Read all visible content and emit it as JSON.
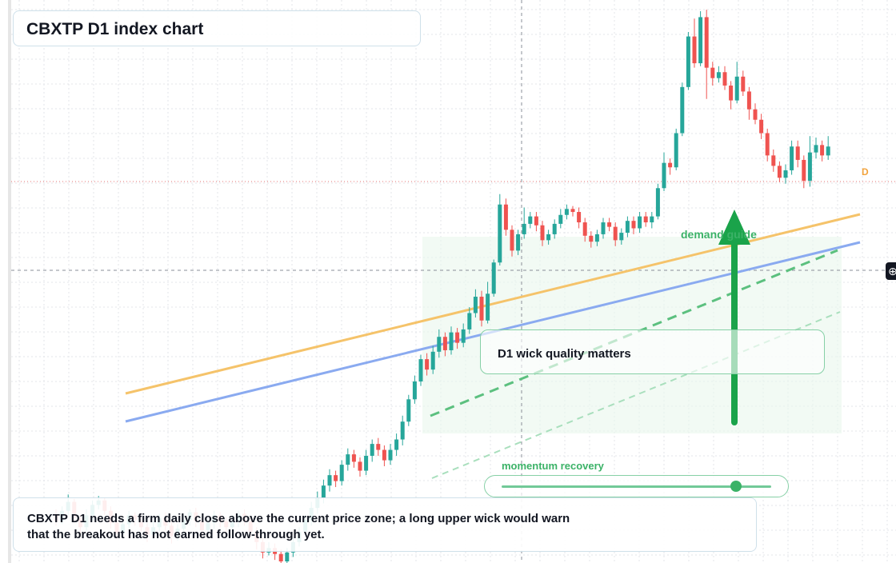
{
  "title": "CBXTP D1 index chart",
  "callout": "D1 wick quality matters",
  "note": "CBXTP D1 needs a firm daily close above the current price zone; a long upper wick would warn that the breakout has not earned follow-through yet.",
  "zone_label": "demand guide",
  "momentum": {
    "label": "momentum recovery",
    "level": 0.87
  },
  "series_badge": "D",
  "icons": {
    "crosshair": "crosshair-icon",
    "arrow": "up-arrow-icon"
  },
  "colors": {
    "up": "#26a69a",
    "down": "#ef5350",
    "trend_orange": "#f5c36a",
    "trend_blue": "#8aaaf0",
    "arrow": "#1aa34a",
    "zone": "#e9f7ec",
    "dashed_green": "#5cc07f",
    "price_line": "#e57373"
  },
  "chart_data": {
    "type": "candlestick",
    "title": "CBXTP D1 index chart",
    "timeframe": "D1",
    "ohlc": [
      [
        612,
        607,
        615,
        604
      ],
      [
        607,
        614,
        617,
        605
      ],
      [
        614,
        620,
        625,
        611
      ],
      [
        620,
        609,
        622,
        606
      ],
      [
        609,
        603,
        611,
        598
      ],
      [
        603,
        611,
        615,
        600
      ],
      [
        611,
        618,
        621,
        607
      ],
      [
        618,
        621,
        624,
        615
      ],
      [
        621,
        614,
        623,
        611
      ],
      [
        614,
        606,
        617,
        602
      ],
      [
        606,
        599,
        609,
        595
      ],
      [
        599,
        605,
        608,
        596
      ],
      [
        605,
        611,
        614,
        602
      ],
      [
        611,
        608,
        613,
        604
      ],
      [
        608,
        603,
        611,
        600
      ],
      [
        603,
        598,
        606,
        593
      ],
      [
        598,
        603,
        607,
        595
      ],
      [
        603,
        609,
        612,
        600
      ],
      [
        609,
        604,
        613,
        601
      ],
      [
        604,
        597,
        607,
        592
      ],
      [
        597,
        602,
        605,
        594
      ],
      [
        602,
        608,
        611,
        598
      ],
      [
        608,
        613,
        615,
        604
      ],
      [
        613,
        607,
        616,
        603
      ],
      [
        607,
        601,
        610,
        597
      ],
      [
        601,
        606,
        609,
        598
      ],
      [
        606,
        611,
        614,
        602
      ],
      [
        611,
        607,
        613,
        603
      ],
      [
        607,
        603,
        610,
        599
      ],
      [
        603,
        607,
        611,
        600
      ],
      [
        607,
        612,
        614,
        603
      ],
      [
        612,
        607,
        615,
        604
      ],
      [
        607,
        600,
        610,
        596
      ],
      [
        600,
        593,
        603,
        588
      ],
      [
        593,
        586,
        596,
        582
      ],
      [
        586,
        589,
        593,
        584
      ],
      [
        589,
        585,
        592,
        581
      ],
      [
        585,
        580,
        588,
        576
      ],
      [
        580,
        586,
        589,
        577
      ],
      [
        586,
        593,
        596,
        583
      ],
      [
        593,
        600,
        603,
        590
      ],
      [
        600,
        608,
        611,
        597
      ],
      [
        608,
        616,
        620,
        604
      ],
      [
        616,
        623,
        627,
        612
      ],
      [
        623,
        631,
        635,
        619
      ],
      [
        631,
        638,
        642,
        627
      ],
      [
        638,
        634,
        641,
        630
      ],
      [
        634,
        645,
        648,
        631
      ],
      [
        645,
        652,
        656,
        641
      ],
      [
        652,
        647,
        655,
        643
      ],
      [
        647,
        641,
        650,
        637
      ],
      [
        641,
        651,
        655,
        638
      ],
      [
        651,
        659,
        662,
        647
      ],
      [
        659,
        655,
        663,
        651
      ],
      [
        655,
        648,
        658,
        644
      ],
      [
        648,
        655,
        659,
        645
      ],
      [
        655,
        662,
        666,
        651
      ],
      [
        662,
        674,
        678,
        658
      ],
      [
        674,
        689,
        692,
        671
      ],
      [
        689,
        701,
        705,
        686
      ],
      [
        701,
        716,
        719,
        698
      ],
      [
        716,
        709,
        720,
        705
      ],
      [
        709,
        721,
        725,
        706
      ],
      [
        721,
        731,
        736,
        717
      ],
      [
        731,
        722,
        734,
        718
      ],
      [
        722,
        734,
        738,
        719
      ],
      [
        734,
        727,
        737,
        723
      ],
      [
        727,
        736,
        740,
        724
      ],
      [
        736,
        747,
        751,
        733
      ],
      [
        747,
        758,
        763,
        744
      ],
      [
        758,
        742,
        762,
        738
      ],
      [
        742,
        760,
        768,
        740
      ],
      [
        760,
        781,
        783,
        758
      ],
      [
        781,
        820,
        827,
        779
      ],
      [
        820,
        803,
        824,
        799
      ],
      [
        803,
        789,
        806,
        785
      ],
      [
        789,
        800,
        803,
        786
      ],
      [
        800,
        807,
        818,
        797
      ],
      [
        807,
        812,
        815,
        804
      ],
      [
        812,
        806,
        815,
        802
      ],
      [
        806,
        796,
        809,
        792
      ],
      [
        796,
        800,
        803,
        793
      ],
      [
        800,
        807,
        810,
        797
      ],
      [
        807,
        813,
        817,
        804
      ],
      [
        813,
        817,
        820,
        810
      ],
      [
        817,
        815,
        819,
        812
      ],
      [
        815,
        808,
        818,
        804
      ],
      [
        808,
        799,
        811,
        795
      ],
      [
        799,
        795,
        802,
        791
      ],
      [
        795,
        800,
        803,
        792
      ],
      [
        800,
        808,
        811,
        797
      ],
      [
        808,
        805,
        811,
        802
      ],
      [
        805,
        796,
        808,
        792
      ],
      [
        796,
        801,
        804,
        793
      ],
      [
        801,
        809,
        812,
        798
      ],
      [
        809,
        804,
        812,
        800
      ],
      [
        804,
        812,
        815,
        801
      ],
      [
        812,
        808,
        815,
        805
      ],
      [
        808,
        812,
        815,
        804
      ],
      [
        812,
        831,
        834,
        810
      ],
      [
        831,
        848,
        855,
        829
      ],
      [
        848,
        845,
        851,
        840
      ],
      [
        845,
        868,
        871,
        843
      ],
      [
        868,
        899,
        902,
        866
      ],
      [
        899,
        933,
        936,
        897
      ],
      [
        933,
        915,
        945,
        912
      ],
      [
        915,
        946,
        950,
        913
      ],
      [
        946,
        912,
        951,
        891
      ],
      [
        912,
        905,
        916,
        900
      ],
      [
        905,
        909,
        913,
        902
      ],
      [
        909,
        900,
        913,
        897
      ],
      [
        900,
        890,
        903,
        884
      ],
      [
        890,
        906,
        916,
        888
      ],
      [
        906,
        896,
        910,
        893
      ],
      [
        896,
        884,
        899,
        877
      ],
      [
        884,
        877,
        888,
        874
      ],
      [
        877,
        868,
        881,
        864
      ],
      [
        868,
        853,
        871,
        849
      ],
      [
        853,
        846,
        857,
        842
      ],
      [
        846,
        838,
        849,
        835
      ],
      [
        838,
        843,
        847,
        834
      ],
      [
        843,
        859,
        863,
        840
      ],
      [
        859,
        850,
        863,
        845
      ],
      [
        850,
        836,
        853,
        831
      ],
      [
        836,
        855,
        866,
        832
      ],
      [
        855,
        860,
        865,
        851
      ],
      [
        860,
        853,
        863,
        849
      ],
      [
        853,
        859,
        866,
        850
      ]
    ],
    "current_price": 859
  }
}
